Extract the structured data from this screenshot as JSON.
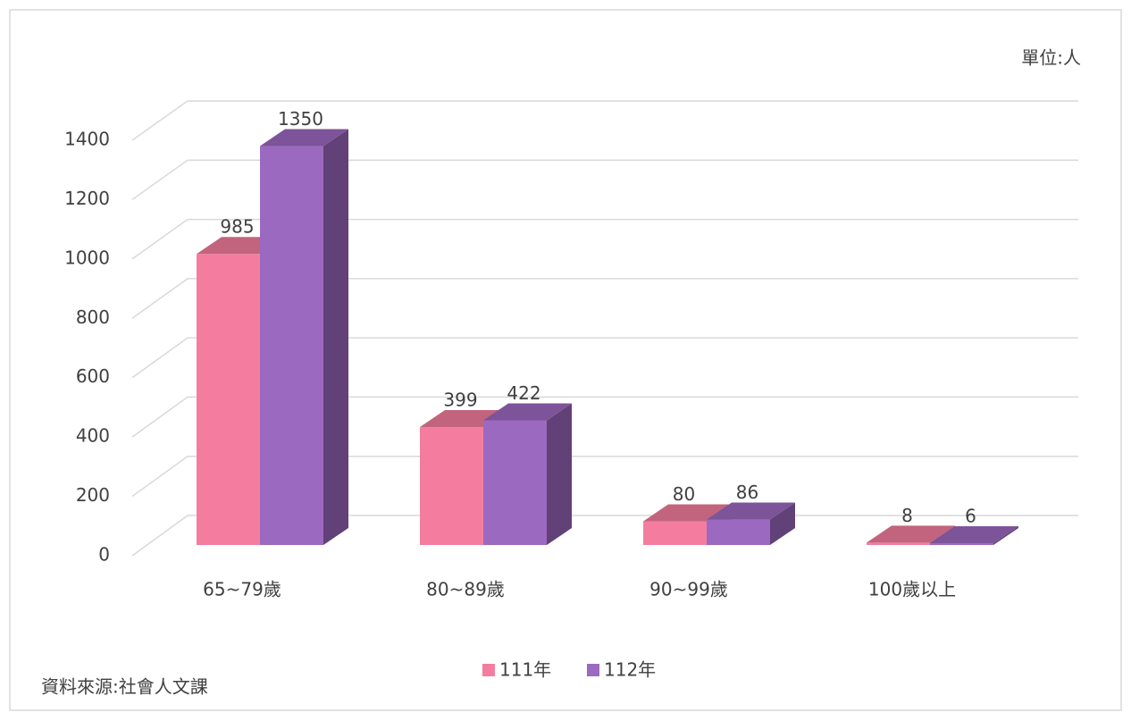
{
  "chart_data": {
    "type": "bar3d",
    "unit_label": "單位:人",
    "source": "資料來源:社會人文課",
    "categories": [
      "65~79歲",
      "80~89歲",
      "90~99歲",
      "100歲以上"
    ],
    "series": [
      {
        "name": "111年",
        "color": "#f47d9f",
        "values": [
          985,
          399,
          80,
          8
        ]
      },
      {
        "name": "112年",
        "color": "#9c69c0",
        "values": [
          1350,
          422,
          86,
          6
        ]
      }
    ],
    "ylim": [
      0,
      1400
    ],
    "yticks": [
      0,
      200,
      400,
      600,
      800,
      1000,
      1200,
      1400
    ],
    "grid": true
  }
}
